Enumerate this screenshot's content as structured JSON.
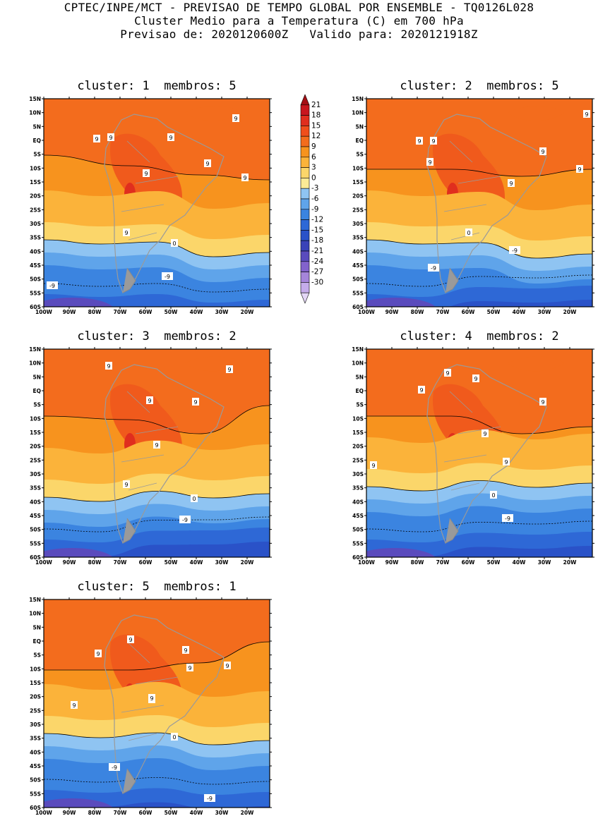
{
  "header": {
    "line1": "CPTEC/INPE/MCT - PREVISAO DE TEMPO GLOBAL POR ENSEMBLE - TQ0126L028",
    "line2": "Cluster Medio para a Temperatura (C) em 700 hPa",
    "line3": "Previsao de: 2020120600Z   Valido para: 2020121918Z"
  },
  "panels": [
    {
      "title": "cluster: 1  membros: 5"
    },
    {
      "title": "cluster: 2  membros: 5"
    },
    {
      "title": "cluster: 3  membros: 2"
    },
    {
      "title": "cluster: 4  membros: 2"
    },
    {
      "title": "cluster: 5  membros: 1"
    }
  ],
  "axes": {
    "lat_labels": [
      "15N",
      "10N",
      "5N",
      "EQ",
      "5S",
      "10S",
      "15S",
      "20S",
      "25S",
      "30S",
      "35S",
      "40S",
      "45S",
      "50S",
      "55S",
      "60S"
    ],
    "lon_labels": [
      "100W",
      "90W",
      "80W",
      "70W",
      "60W",
      "50W",
      "40W",
      "30W",
      "20W"
    ]
  },
  "colorbar": {
    "labels": [
      "21",
      "18",
      "15",
      "12",
      "9",
      "6",
      "3",
      "0",
      "-3",
      "-6",
      "-9",
      "-12",
      "-15",
      "-18",
      "-21",
      "-24",
      "-27",
      "-30"
    ],
    "colors": [
      "#a50f15",
      "#c8161e",
      "#e02e1e",
      "#f04e1c",
      "#f36c1d",
      "#f7931e",
      "#fbb33a",
      "#fbd66a",
      "#fbea96",
      "#8fc4f2",
      "#5fa4ea",
      "#3b84e0",
      "#2e68d6",
      "#2a52c8",
      "#3a42b8",
      "#5a4bbd",
      "#8262cc",
      "#a585da",
      "#c5acea",
      "#e3d6f5"
    ]
  },
  "contour_labels": {
    "p1": [
      "9",
      "9",
      "9",
      "9",
      "9",
      "9",
      "9",
      "9",
      "0",
      "-9",
      "-9"
    ],
    "p2": [
      "9",
      "9",
      "9",
      "9",
      "9",
      "9",
      "9",
      "0",
      "-9",
      "-9"
    ],
    "p3": [
      "9",
      "9",
      "9",
      "9",
      "9",
      "9",
      "0",
      "-9"
    ],
    "p4": [
      "9",
      "9",
      "9",
      "9",
      "9",
      "9",
      "9",
      "0",
      "-9"
    ],
    "p5": [
      "9",
      "9",
      "9",
      "9",
      "9",
      "9",
      "9",
      "9",
      "0",
      "-9",
      "-9"
    ]
  }
}
